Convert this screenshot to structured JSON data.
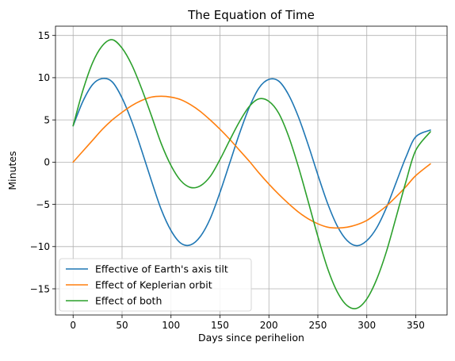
{
  "chart_data": {
    "type": "line",
    "title": "The Equation of Time",
    "xlabel": "Days since perihelion",
    "ylabel": "Minutes",
    "xlim": [
      -18,
      382
    ],
    "ylim": [
      -18.1,
      16.1
    ],
    "xticks": [
      0,
      50,
      100,
      150,
      200,
      250,
      300,
      350
    ],
    "yticks": [
      -15,
      -10,
      -5,
      0,
      5,
      10,
      15
    ],
    "grid": true,
    "legend_position": "lower-left",
    "x": [
      0,
      10,
      20,
      30,
      40,
      50,
      60,
      70,
      80,
      90,
      100,
      110,
      120,
      130,
      140,
      150,
      160,
      170,
      180,
      190,
      200,
      210,
      220,
      230,
      240,
      250,
      260,
      270,
      280,
      290,
      300,
      310,
      320,
      330,
      340,
      350,
      365
    ],
    "series": [
      {
        "name": "Effective of Earth's axis tilt",
        "color": "#1f77b4",
        "values": [
          4.3,
          7.2,
          9.2,
          9.9,
          9.5,
          7.6,
          4.8,
          1.4,
          -2.2,
          -5.6,
          -8.1,
          -9.6,
          -9.8,
          -8.8,
          -6.7,
          -3.6,
          -0.1,
          3.4,
          6.5,
          8.8,
          9.8,
          9.6,
          8.0,
          5.4,
          2.1,
          -1.5,
          -4.9,
          -7.6,
          -9.3,
          -9.9,
          -9.3,
          -7.8,
          -5.4,
          -2.4,
          0.6,
          3.0,
          3.8
        ]
      },
      {
        "name": "Effect of Keplerian orbit",
        "color": "#ff7f0e",
        "values": [
          0.0,
          1.3,
          2.6,
          3.9,
          5.0,
          5.9,
          6.7,
          7.3,
          7.7,
          7.8,
          7.7,
          7.4,
          6.8,
          6.0,
          5.0,
          3.9,
          2.7,
          1.4,
          0.1,
          -1.3,
          -2.6,
          -3.8,
          -4.9,
          -5.9,
          -6.7,
          -7.3,
          -7.7,
          -7.8,
          -7.7,
          -7.4,
          -6.9,
          -6.1,
          -5.2,
          -4.1,
          -2.9,
          -1.6,
          -0.2
        ]
      },
      {
        "name": "Effect of both",
        "color": "#2ca02c",
        "values": [
          4.3,
          8.5,
          11.8,
          13.8,
          14.5,
          13.5,
          11.5,
          8.7,
          5.5,
          2.2,
          -0.4,
          -2.2,
          -3.0,
          -2.8,
          -1.7,
          0.3,
          2.6,
          4.8,
          6.6,
          7.5,
          7.2,
          5.8,
          3.1,
          -0.5,
          -4.6,
          -8.8,
          -12.6,
          -15.4,
          -17.0,
          -17.3,
          -16.2,
          -13.9,
          -10.6,
          -6.5,
          -2.3,
          1.4,
          3.6
        ]
      }
    ]
  }
}
